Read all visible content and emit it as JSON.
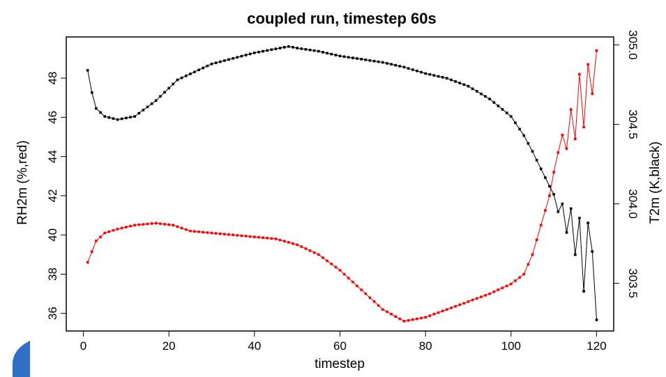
{
  "chart_data": {
    "type": "line",
    "title": "coupled run, timestep 60s",
    "xlabel": "timestep",
    "ylabel_left": "RH2m (%,red)",
    "ylabel_right": "T2m (K,black)",
    "xlim": [
      -4,
      124
    ],
    "ylim_left": [
      35.1,
      50.1
    ],
    "ylim_right": [
      303.2,
      305.05
    ],
    "x_ticks": [
      0,
      20,
      40,
      60,
      80,
      100,
      120
    ],
    "y_ticks_left": [
      36,
      38,
      40,
      42,
      44,
      46,
      48
    ],
    "y_ticks_right": [
      303.5,
      304.0,
      304.5,
      305.0
    ],
    "x_tick_labels": [
      "0",
      "20",
      "40",
      "60",
      "80",
      "100",
      "120"
    ],
    "y_tick_labels_left": [
      "36",
      "38",
      "40",
      "42",
      "44",
      "46",
      "48"
    ],
    "y_tick_labels_right": [
      "303.5",
      "304.0",
      "304.5",
      "305.0"
    ],
    "grid": false,
    "series": [
      {
        "name": "RH2m",
        "axis": "left",
        "color": "#ff0000",
        "x": [
          1,
          3,
          5,
          8,
          12,
          17,
          21,
          25,
          30,
          35,
          40,
          45,
          50,
          55,
          60,
          65,
          70,
          75,
          80,
          85,
          90,
          95,
          100,
          103,
          105,
          107,
          109,
          110,
          111,
          112,
          113,
          114,
          115,
          116,
          117,
          118,
          119,
          120
        ],
        "values": [
          38.6,
          39.7,
          40.1,
          40.3,
          40.5,
          40.6,
          40.5,
          40.2,
          40.1,
          40.0,
          39.9,
          39.8,
          39.5,
          39.0,
          38.2,
          37.2,
          36.2,
          35.6,
          35.8,
          36.2,
          36.6,
          37.0,
          37.5,
          38.0,
          39.0,
          40.5,
          42.0,
          43.2,
          44.2,
          45.1,
          44.4,
          46.4,
          44.9,
          48.2,
          45.5,
          48.7,
          47.2,
          49.4
        ]
      },
      {
        "name": "T2m",
        "axis": "right",
        "color": "#000000",
        "x": [
          1,
          2,
          3,
          5,
          8,
          12,
          17,
          22,
          30,
          40,
          48,
          50,
          55,
          60,
          65,
          70,
          75,
          80,
          85,
          90,
          95,
          100,
          103,
          105,
          107,
          109,
          110,
          111,
          112,
          113,
          114,
          115,
          116,
          117,
          118,
          119,
          120
        ],
        "values": [
          304.84,
          304.7,
          304.6,
          304.55,
          304.53,
          304.55,
          304.65,
          304.78,
          304.88,
          304.95,
          304.99,
          304.98,
          304.96,
          304.93,
          304.91,
          304.89,
          304.86,
          304.82,
          304.79,
          304.74,
          304.66,
          304.55,
          304.43,
          304.33,
          304.22,
          304.11,
          304.06,
          303.95,
          304.0,
          303.82,
          303.97,
          303.68,
          303.91,
          303.45,
          303.88,
          303.7,
          303.27
        ]
      }
    ]
  },
  "decor": {
    "corner_shape_color": "#2f6fc6"
  }
}
